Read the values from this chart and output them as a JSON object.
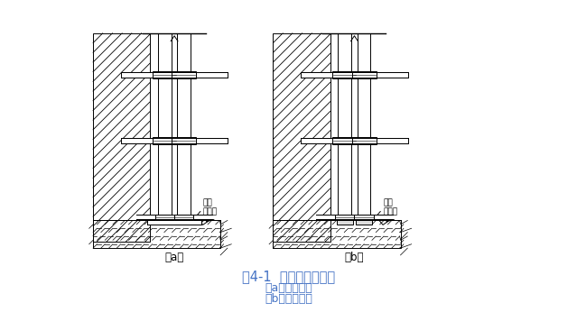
{
  "bg_color": "#ffffff",
  "line_color": "#000000",
  "title_text": "图4-1  普通脚手架基底",
  "sub_a_text": "（a）横铺垫板",
  "sub_b_text": "（b）顺铺垫板",
  "label_damu": "垫木",
  "label_drain": "排水沟",
  "caption_a": "（a）",
  "caption_b": "（b）",
  "title_color": "#4472c4",
  "sub_color": "#4472c4",
  "fig_width": 6.39,
  "fig_height": 3.46,
  "dpi": 100
}
